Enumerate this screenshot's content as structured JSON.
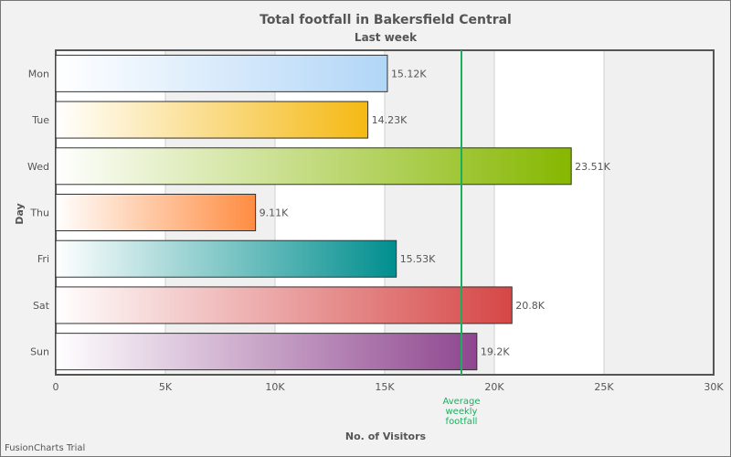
{
  "chart_data": {
    "type": "bar",
    "orientation": "horizontal",
    "title": "Total footfall in Bakersfield Central",
    "subtitle": "Last week",
    "xlabel": "No. of Visitors",
    "ylabel": "Day",
    "xlim": [
      0,
      30000
    ],
    "x_ticks": [
      "0",
      "5K",
      "10K",
      "15K",
      "20K",
      "25K",
      "30K"
    ],
    "x_tick_values": [
      0,
      5000,
      10000,
      15000,
      20000,
      25000,
      30000
    ],
    "categories": [
      "Mon",
      "Tue",
      "Wed",
      "Thu",
      "Fri",
      "Sat",
      "Sun"
    ],
    "values": [
      15123,
      14233,
      23507,
      9110,
      15529,
      20803,
      19202
    ],
    "value_labels": [
      "15.12K",
      "14.23K",
      "23.51K",
      "9.11K",
      "15.53K",
      "20.8K",
      "19.2K"
    ],
    "bar_colors": [
      "#b1d6f7",
      "#f5b913",
      "#86b700",
      "#ff8c41",
      "#008e8e",
      "#d64646",
      "#8e468e"
    ],
    "trendline": {
      "value": 18500,
      "label": "Average weekly footfall",
      "label_lines": [
        "Average",
        "weekly",
        "footfall"
      ],
      "color": "#29c3be"
    },
    "grid": true,
    "legend": "none"
  },
  "colors": {
    "background": "#f2f2f2",
    "plot_band_light": "#ffffff",
    "plot_band_dark": "#f0f0f0",
    "trendline": "#1aaf5d"
  },
  "watermark": "FusionCharts Trial"
}
